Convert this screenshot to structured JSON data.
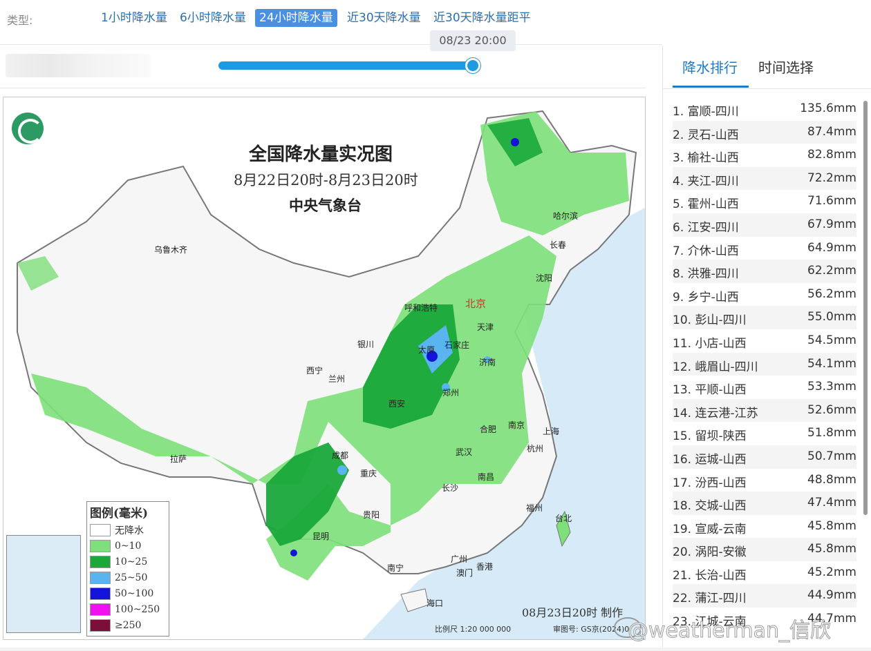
{
  "type_bar": {
    "label": "类型:",
    "tabs": [
      {
        "label": "1小时降水量",
        "active": false
      },
      {
        "label": "6小时降水量",
        "active": false
      },
      {
        "label": "24小时降水量",
        "active": true
      },
      {
        "label": "近30天降水量",
        "active": false
      },
      {
        "label": "近30天降水量距平",
        "active": false
      }
    ]
  },
  "slider": {
    "time_label": "08/23 20:00",
    "progress": 1.0
  },
  "map": {
    "title": "全国降水量实况图",
    "subtitle": "8月22日20时-8月23日20时",
    "org": "中央气象台",
    "made": "08月23日20时 制作",
    "scale": "比例尺 1:20 000 000",
    "approval": "审图号: GS京(2024)0",
    "capital": "北京",
    "cities": [
      "乌鲁木齐",
      "哈尔滨",
      "长春",
      "沈阳",
      "呼和浩特",
      "天津",
      "银川",
      "太原",
      "石家庄",
      "西宁",
      "兰州",
      "济南",
      "郑州",
      "西安",
      "南京",
      "合肥",
      "上海",
      "成都",
      "重庆",
      "武汉",
      "杭州",
      "拉萨",
      "南昌",
      "长沙",
      "贵阳",
      "福州",
      "台北",
      "昆明",
      "广州",
      "香港",
      "澳门",
      "南宁",
      "海口"
    ],
    "legend": {
      "title": "图例(毫米)",
      "items": [
        {
          "label": "无降水",
          "color": "#ffffff"
        },
        {
          "label": "0~10",
          "color": "#7ee07a"
        },
        {
          "label": "10~25",
          "color": "#1aa83a"
        },
        {
          "label": "25~50",
          "color": "#5ab4f0"
        },
        {
          "label": "50~100",
          "color": "#1414d8"
        },
        {
          "label": "100~250",
          "color": "#f010f0"
        },
        {
          "label": "≥250",
          "color": "#7a0f3a"
        }
      ]
    }
  },
  "panel": {
    "tabs": [
      {
        "label": "降水排行",
        "active": true
      },
      {
        "label": "时间选择",
        "active": false
      }
    ],
    "ranking": [
      {
        "name": "1. 富顺-四川",
        "value": "135.6mm"
      },
      {
        "name": "2. 灵石-山西",
        "value": "87.4mm"
      },
      {
        "name": "3. 榆社-山西",
        "value": "82.8mm"
      },
      {
        "name": "4. 夹江-四川",
        "value": "72.2mm"
      },
      {
        "name": "5. 霍州-山西",
        "value": "71.6mm"
      },
      {
        "name": "6. 江安-四川",
        "value": "67.9mm"
      },
      {
        "name": "7. 介休-山西",
        "value": "64.9mm"
      },
      {
        "name": "8. 洪雅-四川",
        "value": "62.2mm"
      },
      {
        "name": "9. 乡宁-山西",
        "value": "56.2mm"
      },
      {
        "name": "10. 彭山-四川",
        "value": "55.0mm"
      },
      {
        "name": "11. 小店-山西",
        "value": "54.5mm"
      },
      {
        "name": "12. 峨眉山-四川",
        "value": "54.1mm"
      },
      {
        "name": "13. 平顺-山西",
        "value": "53.3mm"
      },
      {
        "name": "14. 连云港-江苏",
        "value": "52.6mm"
      },
      {
        "name": "15. 留坝-陕西",
        "value": "51.8mm"
      },
      {
        "name": "16. 运城-山西",
        "value": "50.7mm"
      },
      {
        "name": "17. 汾西-山西",
        "value": "48.8mm"
      },
      {
        "name": "18. 交城-山西",
        "value": "47.4mm"
      },
      {
        "name": "19. 宣威-云南",
        "value": "45.8mm"
      },
      {
        "name": "20. 涡阳-安徽",
        "value": "45.8mm"
      },
      {
        "name": "21. 长治-山西",
        "value": "45.2mm"
      },
      {
        "name": "22. 蒲江-四川",
        "value": "44.9mm"
      },
      {
        "name": "23. 江城-云南",
        "value": "44.7mm"
      }
    ]
  },
  "watermark": "@weatherman_信欣"
}
